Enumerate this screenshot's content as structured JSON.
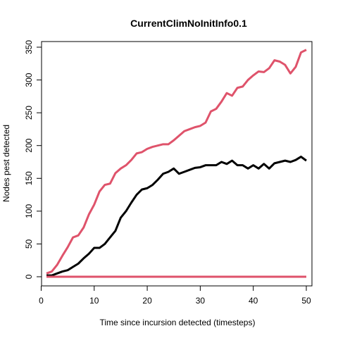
{
  "chart_data": {
    "type": "line",
    "title": "CurrentClimNoInitInfo0.1",
    "xlabel": "Time since incursion detected (timesteps)",
    "ylabel": "Nodes pest detected",
    "xlim": [
      1,
      50
    ],
    "ylim": [
      0,
      350
    ],
    "xticks": [
      0,
      10,
      20,
      30,
      40,
      50
    ],
    "yticks": [
      0,
      50,
      100,
      150,
      200,
      250,
      300,
      350
    ],
    "grid": false,
    "x": [
      1,
      2,
      3,
      4,
      5,
      6,
      7,
      8,
      9,
      10,
      11,
      12,
      13,
      14,
      15,
      16,
      17,
      18,
      19,
      20,
      21,
      22,
      23,
      24,
      25,
      26,
      27,
      28,
      29,
      30,
      31,
      32,
      33,
      34,
      35,
      36,
      37,
      38,
      39,
      40,
      41,
      42,
      43,
      44,
      45,
      46,
      47,
      48,
      49,
      50
    ],
    "series": [
      {
        "color": "#000000",
        "values": [
          2,
          2,
          5,
          8,
          10,
          15,
          20,
          28,
          35,
          44,
          44,
          50,
          60,
          70,
          90,
          100,
          113,
          125,
          133,
          135,
          140,
          148,
          157,
          160,
          165,
          157,
          160,
          163,
          166,
          167,
          170,
          170,
          170,
          175,
          172,
          177,
          170,
          170,
          165,
          170,
          165,
          172,
          165,
          173,
          175,
          177,
          175,
          178,
          183,
          177
        ]
      },
      {
        "color": "#DF536B",
        "values": [
          5,
          8,
          18,
          32,
          45,
          60,
          63,
          75,
          95,
          110,
          130,
          140,
          142,
          158,
          165,
          170,
          178,
          188,
          190,
          195,
          198,
          200,
          202,
          202,
          208,
          215,
          222,
          225,
          228,
          230,
          235,
          252,
          256,
          267,
          280,
          276,
          288,
          290,
          300,
          307,
          313,
          312,
          318,
          330,
          328,
          323,
          310,
          320,
          342,
          346
        ]
      },
      {
        "color": "#DF536B",
        "values": [
          0,
          0,
          0,
          0,
          0,
          0,
          0,
          0,
          0,
          0,
          0,
          0,
          0,
          0,
          0,
          0,
          0,
          0,
          0,
          0,
          0,
          0,
          0,
          0,
          0,
          0,
          0,
          0,
          0,
          0,
          0,
          0,
          0,
          0,
          0,
          0,
          0,
          0,
          0,
          0,
          0,
          0,
          0,
          0,
          0,
          0,
          0,
          0,
          0,
          0
        ]
      }
    ]
  }
}
